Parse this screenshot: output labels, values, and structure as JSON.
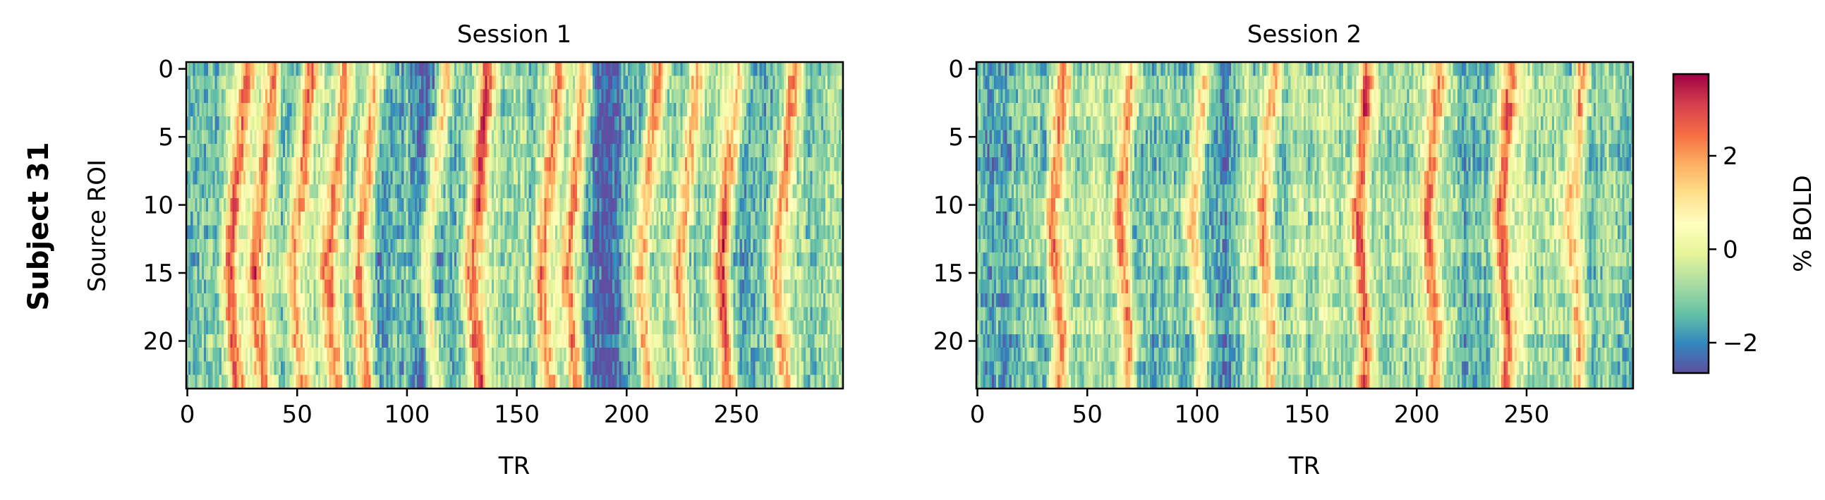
{
  "figure": {
    "row_label": "Subject 31"
  },
  "chart_data": [
    {
      "type": "heatmap",
      "title": "Session 1",
      "xlabel": "TR",
      "ylabel": "Source ROI",
      "xlim": [
        0,
        299
      ],
      "ylim": [
        23.5,
        -0.5
      ],
      "n_rows": 24,
      "n_cols": 299,
      "xticks": [
        0,
        50,
        100,
        150,
        200,
        250
      ],
      "yticks": [
        0,
        5,
        10,
        15,
        20
      ],
      "colormap": "Spectral_r",
      "peak_TRs": [
        23,
        35,
        52,
        68,
        82,
        113,
        133,
        165,
        177,
        210,
        228,
        247,
        272
      ],
      "low_TR_bands": [
        107,
        115,
        187,
        193
      ],
      "peak_shift_TR_by_row": [
        4,
        4,
        3,
        3,
        2,
        1,
        1,
        0,
        0,
        -1,
        -1,
        -2,
        -3,
        -3,
        -4,
        -4,
        -4,
        -3,
        -3,
        -2,
        -2,
        -1,
        -1,
        0
      ]
    },
    {
      "type": "heatmap",
      "title": "Session 2",
      "xlabel": "TR",
      "ylabel": "",
      "xlim": [
        0,
        299
      ],
      "ylim": [
        23.5,
        -0.5
      ],
      "n_rows": 24,
      "n_cols": 299,
      "xticks": [
        0,
        50,
        100,
        150,
        200,
        250
      ],
      "yticks": [
        0,
        5,
        10,
        15,
        20
      ],
      "colormap": "Spectral_r",
      "peak_TRs": [
        36,
        67,
        100,
        132,
        175,
        207,
        240,
        272
      ],
      "low_TR_bands": [
        105,
        113
      ],
      "peak_shift_TR_by_row": [
        3,
        3,
        2,
        2,
        1,
        1,
        0,
        0,
        -1,
        -1,
        -2,
        -2,
        -2,
        -1,
        -1,
        0,
        0,
        1,
        1,
        2,
        2,
        2,
        1,
        1
      ]
    },
    {
      "type": "colorbar",
      "label": "% BOLD",
      "vmin": -2.65,
      "vmax": 3.75,
      "ticks": [
        -2,
        0,
        2
      ],
      "tick_labels": [
        "−2",
        "0",
        "2"
      ],
      "colors": [
        "#5e4fa2",
        "#3288bd",
        "#66c2a5",
        "#abdda4",
        "#e6f598",
        "#ffffbf",
        "#fee08b",
        "#fdae61",
        "#f46d43",
        "#d53e4f",
        "#9e0142"
      ]
    }
  ]
}
